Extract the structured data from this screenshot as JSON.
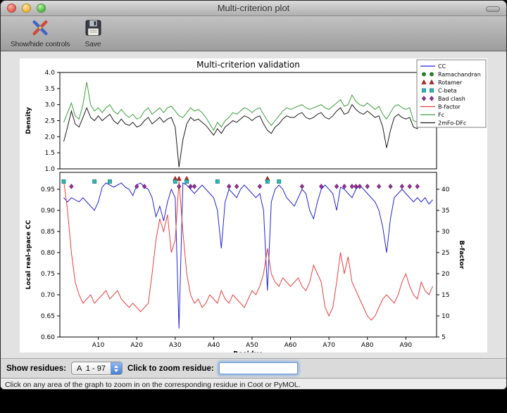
{
  "window": {
    "title": "Multi-criterion plot"
  },
  "toolbar": {
    "show_hide_label": "Show/hide controls",
    "save_label": "Save"
  },
  "controls": {
    "show_residues_label": "Show residues:",
    "residue_range_value": "A  1 - 97",
    "zoom_label": "Click to zoom residue:",
    "zoom_input_value": ""
  },
  "status": {
    "message": "Click on any area of the graph to zoom in on the corresponding residue in Coot or PyMOL."
  },
  "chart_data": {
    "type": "line",
    "title": "Multi-criterion validation",
    "xlabel": "Residue",
    "x_range": [
      0,
      98
    ],
    "x_ticks": {
      "positions": [
        10,
        20,
        30,
        40,
        50,
        60,
        70,
        80,
        90
      ],
      "labels": [
        "A10",
        "A20",
        "A30",
        "A40",
        "A50",
        "A60",
        "A70",
        "A80",
        "A90"
      ]
    },
    "top_plot": {
      "ylabel": "Density",
      "ylim": [
        1.0,
        4.0
      ],
      "yticks": [
        1.0,
        1.5,
        2.0,
        2.5,
        3.0,
        3.5,
        4.0
      ],
      "series": [
        {
          "name": "Fc",
          "color": "#3c9e3c",
          "values": [
            2.45,
            2.75,
            3.05,
            2.65,
            2.55,
            3.0,
            3.7,
            3.0,
            2.8,
            2.9,
            2.75,
            2.9,
            3.0,
            2.8,
            2.7,
            2.85,
            2.7,
            2.6,
            2.7,
            2.55,
            2.6,
            2.8,
            2.9,
            2.7,
            2.8,
            2.9,
            2.75,
            2.9,
            2.95,
            2.8,
            2.65,
            2.6,
            2.75,
            2.9,
            2.8,
            2.85,
            2.75,
            2.6,
            2.4,
            2.2,
            2.45,
            2.3,
            2.5,
            2.6,
            2.75,
            2.7,
            2.8,
            2.9,
            2.85,
            2.75,
            2.85,
            2.9,
            2.7,
            2.5,
            2.35,
            2.5,
            2.65,
            2.8,
            2.9,
            2.85,
            2.9,
            2.95,
            3.0,
            2.9,
            2.85,
            2.9,
            2.95,
            3.0,
            2.9,
            2.85,
            2.95,
            3.05,
            3.15,
            2.95,
            3.0,
            3.3,
            3.1,
            3.0,
            2.95,
            3.05,
            2.95,
            2.85,
            2.95,
            2.7,
            2.55,
            2.75,
            2.95,
            3.0,
            2.9,
            2.85,
            2.9,
            2.5,
            2.45,
            3.25,
            3.0,
            3.4,
            3.3
          ]
        },
        {
          "name": "2mFo-DFc",
          "color": "#1a1a1a",
          "values": [
            1.85,
            2.3,
            2.8,
            2.4,
            2.3,
            2.6,
            2.9,
            2.6,
            2.5,
            2.65,
            2.5,
            2.6,
            2.7,
            2.5,
            2.4,
            2.55,
            2.4,
            2.35,
            2.45,
            2.3,
            2.35,
            2.5,
            2.6,
            2.4,
            2.5,
            2.6,
            2.45,
            2.55,
            2.6,
            2.3,
            1.05,
            1.9,
            2.4,
            2.6,
            2.5,
            2.55,
            2.45,
            2.35,
            2.2,
            2.05,
            2.25,
            2.1,
            2.3,
            2.4,
            2.5,
            2.45,
            2.55,
            2.65,
            2.6,
            2.5,
            2.6,
            2.65,
            2.4,
            2.2,
            2.1,
            2.3,
            2.4,
            2.55,
            2.65,
            2.6,
            2.6,
            2.7,
            2.75,
            2.6,
            2.55,
            2.6,
            2.7,
            2.75,
            2.6,
            2.55,
            2.65,
            2.8,
            2.9,
            2.7,
            2.75,
            3.0,
            2.85,
            2.75,
            2.7,
            2.8,
            2.7,
            2.6,
            2.65,
            2.3,
            1.65,
            2.2,
            2.6,
            2.7,
            2.6,
            2.55,
            2.6,
            2.3,
            2.25,
            2.9,
            2.7,
            3.1,
            2.5
          ]
        }
      ]
    },
    "bottom_plot": {
      "ylabel_left": "Local real-space CC",
      "ylim_left": [
        0.6,
        0.99
      ],
      "yticks_left": [
        0.6,
        0.65,
        0.7,
        0.75,
        0.8,
        0.85,
        0.9,
        0.95
      ],
      "ylabel_right": "B-factor",
      "ylim_right": [
        5,
        44
      ],
      "yticks_right": [
        5,
        10,
        15,
        20,
        25,
        30,
        35,
        40
      ],
      "series": [
        {
          "name": "CC",
          "axis": "left",
          "color": "#2424d9",
          "values": [
            0.93,
            0.92,
            0.93,
            0.925,
            0.92,
            0.93,
            0.92,
            0.91,
            0.9,
            0.92,
            0.955,
            0.965,
            0.96,
            0.955,
            0.96,
            0.965,
            0.955,
            0.95,
            0.935,
            0.96,
            0.965,
            0.955,
            0.95,
            0.93,
            0.885,
            0.91,
            0.875,
            0.92,
            0.95,
            0.93,
            0.62,
            0.965,
            0.96,
            0.95,
            0.94,
            0.95,
            0.96,
            0.95,
            0.94,
            0.93,
            0.9,
            0.81,
            0.92,
            0.95,
            0.94,
            0.93,
            0.95,
            0.96,
            0.95,
            0.94,
            0.93,
            0.94,
            0.9,
            0.71,
            0.92,
            0.95,
            0.96,
            0.95,
            0.93,
            0.92,
            0.91,
            0.93,
            0.95,
            0.94,
            0.9,
            0.88,
            0.92,
            0.95,
            0.96,
            0.95,
            0.94,
            0.9,
            0.955,
            0.95,
            0.94,
            0.93,
            0.95,
            0.96,
            0.95,
            0.94,
            0.93,
            0.92,
            0.9,
            0.86,
            0.8,
            0.88,
            0.93,
            0.94,
            0.95,
            0.94,
            0.93,
            0.92,
            0.93,
            0.92,
            0.93,
            0.915,
            0.925
          ]
        },
        {
          "name": "B-factor",
          "axis": "right",
          "color": "#e84040",
          "values": [
            42,
            35,
            25,
            18,
            15,
            13,
            14,
            15,
            13,
            14,
            15,
            16,
            14,
            15,
            16,
            14,
            13,
            12,
            13,
            12,
            11,
            12,
            13,
            20,
            28,
            33,
            30,
            34,
            25,
            28,
            42,
            30,
            20,
            15,
            13,
            14,
            12,
            13,
            15,
            14,
            13,
            16,
            14,
            13,
            15,
            14,
            13,
            12,
            14,
            16,
            15,
            17,
            20,
            26,
            20,
            18,
            17,
            19,
            18,
            17,
            18,
            19,
            17,
            16,
            18,
            22,
            20,
            18,
            12,
            10,
            12,
            18,
            25,
            20,
            24,
            18,
            16,
            14,
            12,
            10,
            9,
            10,
            12,
            14,
            15,
            14,
            13,
            15,
            18,
            20,
            17,
            15,
            14,
            18,
            16,
            15,
            17
          ]
        }
      ],
      "markers": [
        {
          "name": "Ramachandran",
          "shape": "circle",
          "color": "#1f8c1f",
          "residues": []
        },
        {
          "name": "Rotamer",
          "shape": "triangle",
          "color": "#cc2020",
          "residues": [
            30,
            31,
            33,
            54
          ]
        },
        {
          "name": "C-beta",
          "shape": "square",
          "color": "#2fb8b8",
          "residues": [
            1,
            9,
            13,
            30,
            33,
            41,
            54,
            57
          ]
        },
        {
          "name": "Bad clash",
          "shape": "diamond",
          "color": "#993399",
          "residues": [
            3,
            20,
            22,
            31,
            34,
            35,
            44,
            46,
            52,
            63,
            68,
            72,
            74,
            76,
            77,
            78,
            80,
            83,
            86,
            89,
            91,
            93
          ]
        }
      ]
    },
    "legend": [
      {
        "label": "CC",
        "type": "line",
        "color": "#2424d9"
      },
      {
        "label": "Ramachandran",
        "type": "circle",
        "color": "#1f8c1f"
      },
      {
        "label": "Rotamer",
        "type": "triangle",
        "color": "#cc2020"
      },
      {
        "label": "C-beta",
        "type": "square",
        "color": "#2fb8b8"
      },
      {
        "label": "Bad clash",
        "type": "diamond",
        "color": "#993399"
      },
      {
        "label": "B-factor",
        "type": "line",
        "color": "#e84040"
      },
      {
        "label": "Fc",
        "type": "line",
        "color": "#3c9e3c"
      },
      {
        "label": "2mFo-DFc",
        "type": "line",
        "color": "#1a1a1a"
      }
    ]
  }
}
